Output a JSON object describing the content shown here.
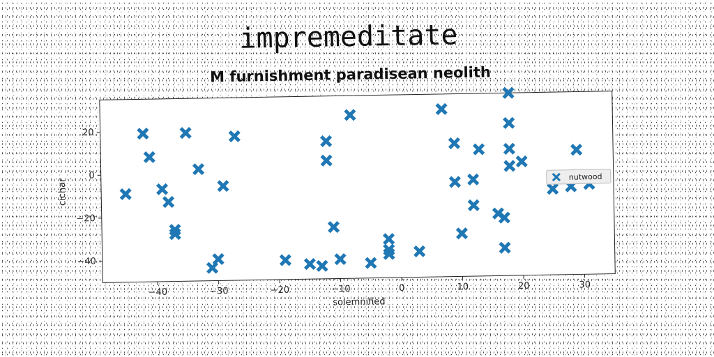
{
  "title": "impremeditate",
  "subtitle": "M furnishment paradisean neolith",
  "chart_data": {
    "type": "scatter",
    "xlabel": "solemnified",
    "ylabel": "cichar",
    "xlim": [
      -49,
      35
    ],
    "ylim": [
      -50,
      35
    ],
    "xticks": [
      -40,
      -30,
      -20,
      -10,
      0,
      10,
      20,
      30
    ],
    "yticks": [
      -40,
      -20,
      0,
      20
    ],
    "grid": false,
    "legend_position": "right",
    "marker": "X",
    "color": "#1f77b4",
    "series": [
      {
        "name": "nutwood",
        "points": [
          [
            -45,
            -9
          ],
          [
            -42,
            19
          ],
          [
            -41,
            8
          ],
          [
            -39,
            -7
          ],
          [
            -38,
            -13
          ],
          [
            -37,
            -26
          ],
          [
            -37,
            -28
          ],
          [
            -35,
            19
          ],
          [
            -33,
            2
          ],
          [
            -31,
            -44
          ],
          [
            -30,
            -40
          ],
          [
            -29,
            -6
          ],
          [
            -27,
            17
          ],
          [
            -19,
            -41
          ],
          [
            -15,
            -43
          ],
          [
            -13,
            -44
          ],
          [
            -12,
            14
          ],
          [
            -12,
            5
          ],
          [
            -11,
            -26
          ],
          [
            -10,
            -41
          ],
          [
            -8,
            26
          ],
          [
            -5,
            -43
          ],
          [
            -2,
            -32
          ],
          [
            -2,
            -37
          ],
          [
            -2,
            -39
          ],
          [
            3,
            -38
          ],
          [
            7,
            28
          ],
          [
            9,
            12
          ],
          [
            9,
            -6
          ],
          [
            10,
            -30
          ],
          [
            12,
            -5
          ],
          [
            12,
            -17
          ],
          [
            13,
            9
          ],
          [
            16,
            -21
          ],
          [
            17,
            -23
          ],
          [
            17,
            -37
          ],
          [
            18,
            35
          ],
          [
            18,
            21
          ],
          [
            18,
            9
          ],
          [
            18,
            1
          ],
          [
            20,
            3
          ],
          [
            25,
            -10
          ],
          [
            28,
            -9
          ],
          [
            29,
            8
          ],
          [
            31,
            -8
          ]
        ]
      }
    ]
  }
}
